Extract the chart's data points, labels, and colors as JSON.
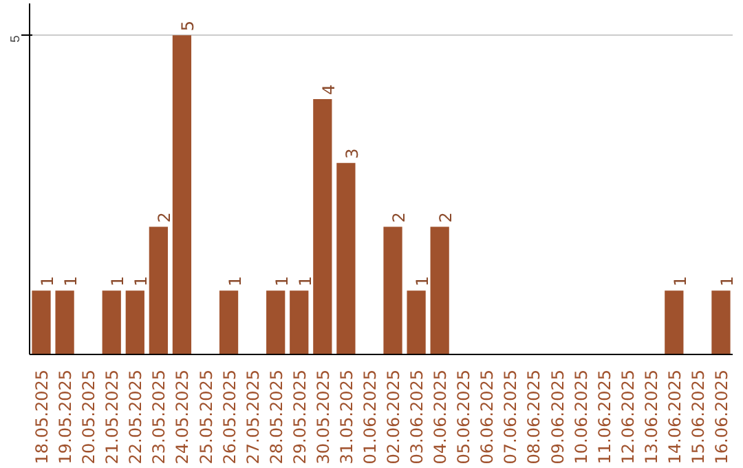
{
  "chart_data": {
    "type": "bar",
    "categories": [
      "18.05.2025",
      "19.05.2025",
      "20.05.2025",
      "21.05.2025",
      "22.05.2025",
      "23.05.2025",
      "24.05.2025",
      "25.05.2025",
      "26.05.2025",
      "27.05.2025",
      "28.05.2025",
      "29.05.2025",
      "30.05.2025",
      "31.05.2025",
      "01.06.2025",
      "02.06.2025",
      "03.06.2025",
      "04.06.2025",
      "05.06.2025",
      "06.06.2025",
      "07.06.2025",
      "08.06.2025",
      "09.06.2025",
      "10.06.2025",
      "11.06.2025",
      "12.06.2025",
      "13.06.2025",
      "14.06.2025",
      "15.06.2025",
      "16.06.2025"
    ],
    "values": [
      1,
      1,
      0,
      1,
      1,
      2,
      5,
      0,
      1,
      0,
      1,
      1,
      4,
      3,
      0,
      2,
      1,
      2,
      0,
      0,
      0,
      0,
      0,
      0,
      0,
      0,
      0,
      1,
      0,
      1
    ],
    "value_labels": [
      "1",
      "1",
      null,
      "1",
      "1",
      "2",
      "5",
      null,
      "1",
      null,
      "1",
      "1",
      "4",
      "3",
      null,
      "2",
      "1",
      "2",
      null,
      null,
      null,
      null,
      null,
      null,
      null,
      null,
      null,
      "1",
      null,
      "1"
    ],
    "color": "#a0522d",
    "ylim": [
      0,
      5.5
    ],
    "yticks": [
      5
    ],
    "grid": "y"
  }
}
